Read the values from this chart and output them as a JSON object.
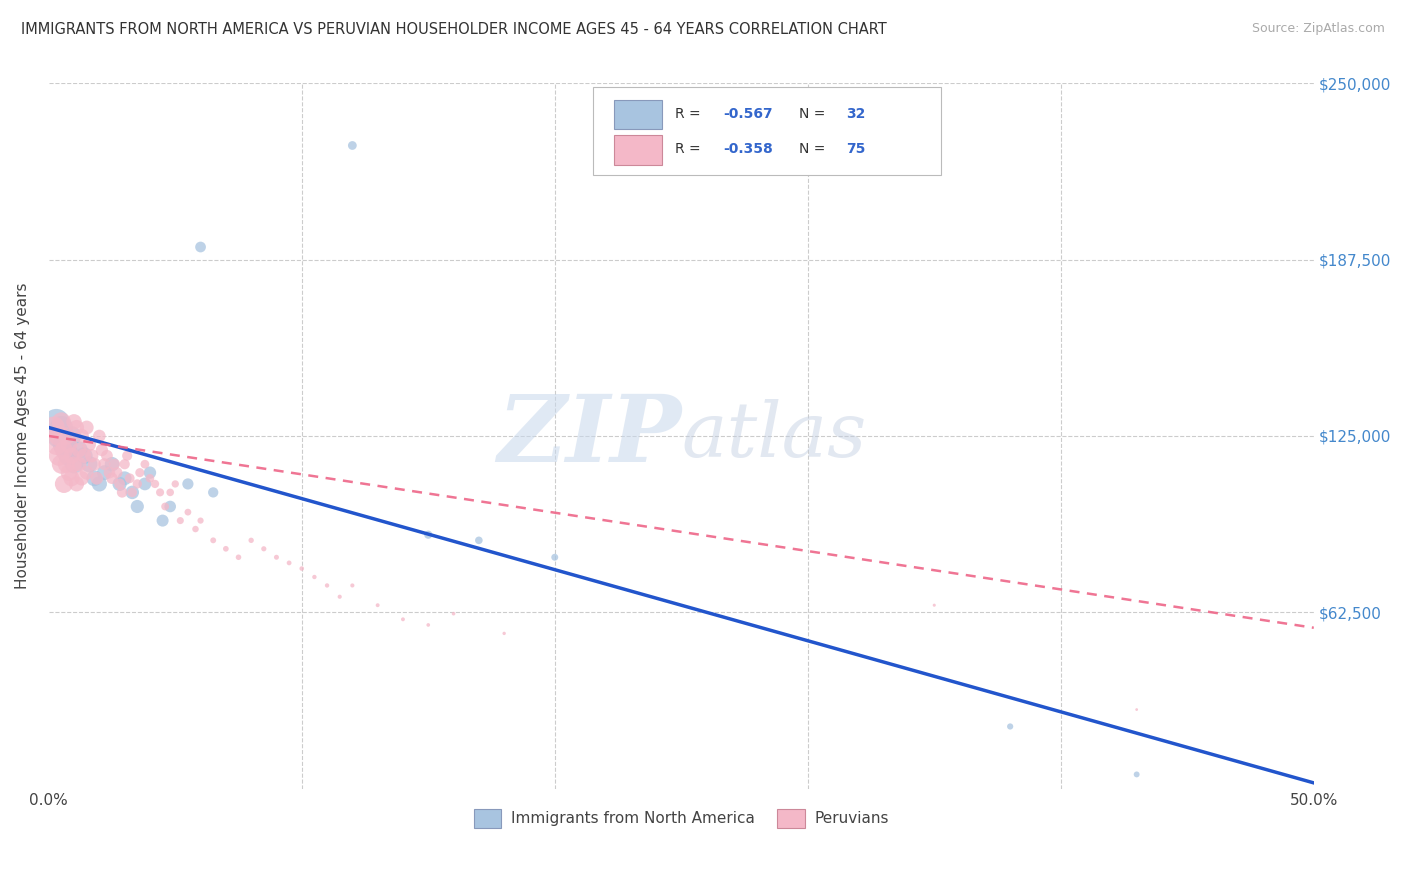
{
  "title": "IMMIGRANTS FROM NORTH AMERICA VS PERUVIAN HOUSEHOLDER INCOME AGES 45 - 64 YEARS CORRELATION CHART",
  "source": "Source: ZipAtlas.com",
  "ylabel": "Householder Income Ages 45 - 64 years",
  "xlim": [
    0.0,
    0.5
  ],
  "ylim": [
    0,
    250000
  ],
  "xtick_positions": [
    0.0,
    0.1,
    0.2,
    0.3,
    0.4,
    0.5
  ],
  "xticklabels": [
    "0.0%",
    "",
    "",
    "",
    "",
    "50.0%"
  ],
  "yticks_right": [
    62500,
    125000,
    187500,
    250000
  ],
  "ytick_labels_right": [
    "$62,500",
    "$125,000",
    "$187,500",
    "$250,000"
  ],
  "grid_color": "#cccccc",
  "background_color": "#ffffff",
  "blue_color": "#a8c4e0",
  "pink_color": "#f4b8c8",
  "blue_line_color": "#2255cc",
  "pink_line_color": "#ee6688",
  "R_blue": -0.567,
  "N_blue": 32,
  "R_pink": -0.358,
  "N_pink": 75,
  "legend1_label": "Immigrants from North America",
  "legend2_label": "Peruvians",
  "watermark_zip": "ZIP",
  "watermark_atlas": "atlas",
  "blue_points_x": [
    0.003,
    0.004,
    0.005,
    0.006,
    0.007,
    0.008,
    0.009,
    0.01,
    0.012,
    0.014,
    0.016,
    0.018,
    0.02,
    0.022,
    0.025,
    0.028,
    0.03,
    0.033,
    0.035,
    0.038,
    0.04,
    0.045,
    0.048,
    0.055,
    0.06,
    0.065,
    0.12,
    0.15,
    0.17,
    0.2,
    0.38,
    0.43
  ],
  "blue_points_y": [
    130000,
    125000,
    128000,
    122000,
    120000,
    118000,
    125000,
    115000,
    120000,
    118000,
    115000,
    110000,
    108000,
    112000,
    115000,
    108000,
    110000,
    105000,
    100000,
    108000,
    112000,
    95000,
    100000,
    108000,
    192000,
    105000,
    228000,
    90000,
    88000,
    82000,
    22000,
    5000
  ],
  "blue_point_sizes": [
    350,
    300,
    280,
    260,
    240,
    220,
    200,
    180,
    160,
    150,
    140,
    130,
    120,
    115,
    110,
    105,
    100,
    95,
    90,
    85,
    80,
    75,
    70,
    65,
    60,
    55,
    40,
    35,
    30,
    25,
    20,
    18
  ],
  "pink_points_x": [
    0.002,
    0.003,
    0.004,
    0.004,
    0.005,
    0.005,
    0.006,
    0.006,
    0.007,
    0.007,
    0.008,
    0.008,
    0.009,
    0.009,
    0.01,
    0.01,
    0.011,
    0.011,
    0.012,
    0.012,
    0.013,
    0.013,
    0.014,
    0.015,
    0.015,
    0.016,
    0.017,
    0.018,
    0.019,
    0.02,
    0.021,
    0.022,
    0.023,
    0.024,
    0.025,
    0.026,
    0.027,
    0.028,
    0.029,
    0.03,
    0.031,
    0.032,
    0.033,
    0.035,
    0.036,
    0.038,
    0.04,
    0.042,
    0.044,
    0.046,
    0.048,
    0.05,
    0.052,
    0.055,
    0.058,
    0.06,
    0.065,
    0.07,
    0.075,
    0.08,
    0.085,
    0.09,
    0.095,
    0.1,
    0.105,
    0.11,
    0.115,
    0.12,
    0.13,
    0.14,
    0.15,
    0.16,
    0.18,
    0.35,
    0.43
  ],
  "pink_points_y": [
    128000,
    122000,
    118000,
    125000,
    115000,
    130000,
    120000,
    108000,
    125000,
    115000,
    122000,
    112000,
    118000,
    110000,
    130000,
    115000,
    128000,
    108000,
    120000,
    115000,
    125000,
    110000,
    118000,
    128000,
    112000,
    122000,
    118000,
    115000,
    110000,
    125000,
    120000,
    115000,
    118000,
    112000,
    110000,
    115000,
    112000,
    108000,
    105000,
    115000,
    118000,
    110000,
    105000,
    108000,
    112000,
    115000,
    110000,
    108000,
    105000,
    100000,
    105000,
    108000,
    95000,
    98000,
    92000,
    95000,
    88000,
    85000,
    82000,
    88000,
    85000,
    82000,
    80000,
    78000,
    75000,
    72000,
    68000,
    72000,
    65000,
    60000,
    58000,
    62000,
    55000,
    65000,
    28000
  ],
  "pink_point_sizes": [
    250,
    230,
    210,
    210,
    190,
    190,
    170,
    170,
    155,
    155,
    145,
    145,
    135,
    135,
    125,
    125,
    118,
    118,
    112,
    112,
    108,
    108,
    105,
    100,
    100,
    95,
    92,
    88,
    85,
    82,
    78,
    75,
    72,
    70,
    68,
    65,
    62,
    60,
    58,
    55,
    53,
    50,
    48,
    45,
    43,
    40,
    38,
    36,
    34,
    32,
    30,
    28,
    26,
    24,
    22,
    20,
    18,
    17,
    16,
    15,
    14,
    13,
    12,
    11,
    10,
    10,
    9,
    9,
    8,
    8,
    7,
    7,
    6,
    5,
    4
  ]
}
